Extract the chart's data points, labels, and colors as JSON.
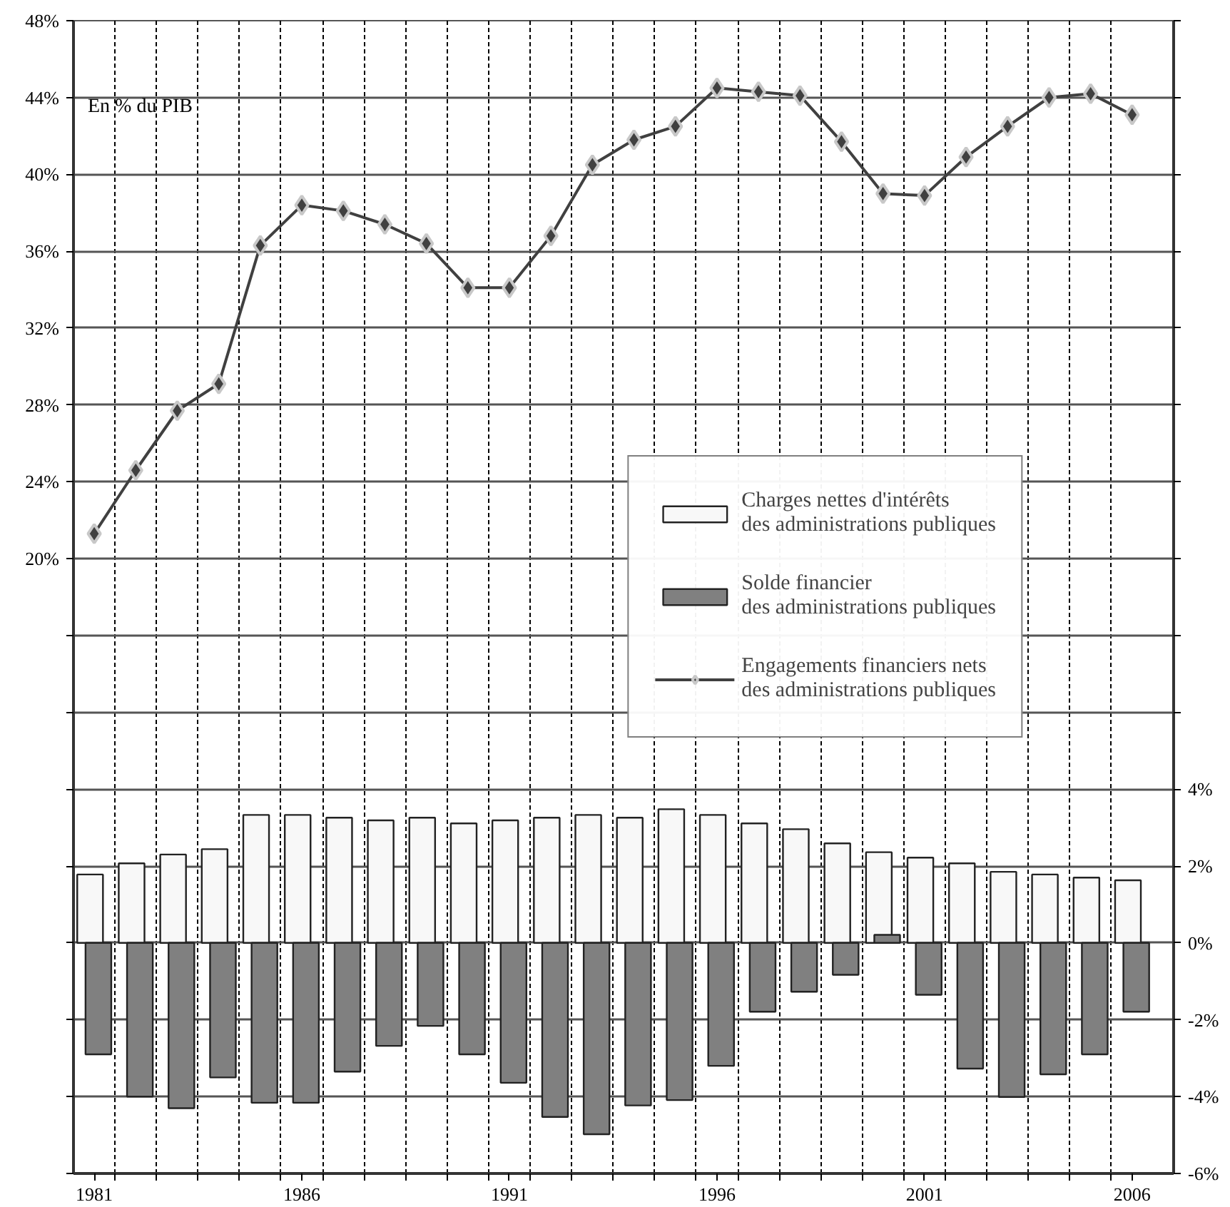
{
  "chart_data": {
    "type": "bar",
    "annotations": [
      "En % du PIB"
    ],
    "x": [
      1981,
      1982,
      1983,
      1984,
      1985,
      1986,
      1987,
      1988,
      1989,
      1990,
      1991,
      1992,
      1993,
      1994,
      1995,
      1996,
      1997,
      1998,
      1999,
      2000,
      2001,
      2002,
      2003,
      2004,
      2005,
      2006
    ],
    "xlim": [
      1980.5,
      2007
    ],
    "xticks": [
      {
        "value": 1981,
        "label": "1981"
      },
      {
        "value": 1986,
        "label": "1986"
      },
      {
        "value": 1991,
        "label": "1991"
      },
      {
        "value": 1996,
        "label": "1996"
      },
      {
        "value": 2001,
        "label": "2001"
      },
      {
        "value": 2006,
        "label": "2006"
      },
      {
        "value": 1981.5,
        "label": null
      },
      {
        "value": 1982.5,
        "label": null
      },
      {
        "value": 1983.5,
        "label": null
      },
      {
        "value": 1984.5,
        "label": null
      },
      {
        "value": 1985.5,
        "label": null
      },
      {
        "value": 1986.5,
        "label": null
      },
      {
        "value": 1987.5,
        "label": null
      },
      {
        "value": 1988.5,
        "label": null
      },
      {
        "value": 1989.5,
        "label": null
      },
      {
        "value": 1990.5,
        "label": null
      },
      {
        "value": 1991.5,
        "label": null
      },
      {
        "value": 1992.5,
        "label": null
      },
      {
        "value": 1993.5,
        "label": null
      },
      {
        "value": 1994.5,
        "label": null
      },
      {
        "value": 1995.5,
        "label": null
      },
      {
        "value": 1996.5,
        "label": null
      },
      {
        "value": 1997.5,
        "label": null
      },
      {
        "value": 1998.5,
        "label": null
      },
      {
        "value": 1999.5,
        "label": null
      },
      {
        "value": 2000.5,
        "label": null
      },
      {
        "value": 2001.5,
        "label": null
      },
      {
        "value": 2002.5,
        "label": null
      },
      {
        "value": 2003.5,
        "label": null
      },
      {
        "value": 2004.5,
        "label": null
      },
      {
        "value": 2005.5,
        "label": null
      }
    ],
    "ylim": [
      -12,
      48
    ],
    "yticks": [
      {
        "value": -12,
        "label": null
      },
      {
        "value": -8,
        "label": null
      },
      {
        "value": -4,
        "label": null
      },
      {
        "value": 0,
        "label": null
      },
      {
        "value": 4,
        "label": null
      },
      {
        "value": 8,
        "label": null
      },
      {
        "value": 12,
        "label": null
      },
      {
        "value": 16,
        "label": null
      },
      {
        "value": 20,
        "label": "20%"
      },
      {
        "value": 24,
        "label": "24%"
      },
      {
        "value": 28,
        "label": "28%"
      },
      {
        "value": 32,
        "label": "32%"
      },
      {
        "value": 36,
        "label": "36%"
      },
      {
        "value": 40,
        "label": "40%"
      },
      {
        "value": 44,
        "label": "44%"
      },
      {
        "value": 48,
        "label": "48%"
      }
    ],
    "y2lim": [
      -6,
      24
    ],
    "y2ticks": [
      {
        "value": -6,
        "label": "-6%"
      },
      {
        "value": -4,
        "label": "-4%"
      },
      {
        "value": -2,
        "label": "-2%"
      },
      {
        "value": 0,
        "label": "0%"
      },
      {
        "value": 2,
        "label": "2%"
      },
      {
        "value": 4,
        "label": "4%"
      },
      {
        "value": 6,
        "label": null
      },
      {
        "value": 8,
        "label": null
      },
      {
        "value": 10,
        "label": null
      },
      {
        "value": 12,
        "label": null
      },
      {
        "value": 14,
        "label": null
      },
      {
        "value": 16,
        "label": null
      },
      {
        "value": 18,
        "label": null
      },
      {
        "value": 20,
        "label": null
      },
      {
        "value": 22,
        "label": null
      },
      {
        "value": 24,
        "label": null
      }
    ],
    "grid": true,
    "legend": "right",
    "marker": "diamond",
    "line_style": "solid",
    "series": [
      {
        "name": "Charges nettes d'intérêts\ndes administrations publiques",
        "color": "#f8f8f8",
        "axis": "y2",
        "values": [
          1.78,
          2.07,
          2.3,
          2.44,
          3.33,
          3.33,
          3.26,
          3.19,
          3.26,
          3.11,
          3.19,
          3.26,
          3.33,
          3.26,
          3.48,
          3.33,
          3.11,
          2.96,
          2.59,
          2.36,
          2.22,
          2.07,
          1.85,
          1.78,
          1.7,
          1.63
        ]
      },
      {
        "name": "Solde financier\ndes administrations publiques",
        "color": "#808080",
        "axis": "y2",
        "values": [
          -2.9,
          -4.0,
          -4.3,
          -3.5,
          -4.16,
          -4.16,
          -3.35,
          -2.68,
          -2.16,
          -2.9,
          -3.64,
          -4.53,
          -4.98,
          -4.23,
          -4.09,
          -3.2,
          -1.79,
          -1.27,
          -0.83,
          0.21,
          -1.35,
          -3.27,
          -4.01,
          -3.42,
          -2.9,
          -1.79
        ]
      },
      {
        "type": "line",
        "name": "Engagements financiers nets\ndes administrations publiques",
        "color": "#404040",
        "values": [
          21.3,
          24.6,
          27.7,
          29.1,
          36.3,
          38.4,
          38.1,
          37.4,
          36.4,
          34.1,
          34.1,
          36.8,
          40.5,
          41.8,
          42.5,
          44.5,
          44.3,
          44.1,
          41.7,
          39.0,
          38.9,
          40.9,
          42.5,
          44.0,
          44.2,
          43.1
        ]
      }
    ]
  }
}
